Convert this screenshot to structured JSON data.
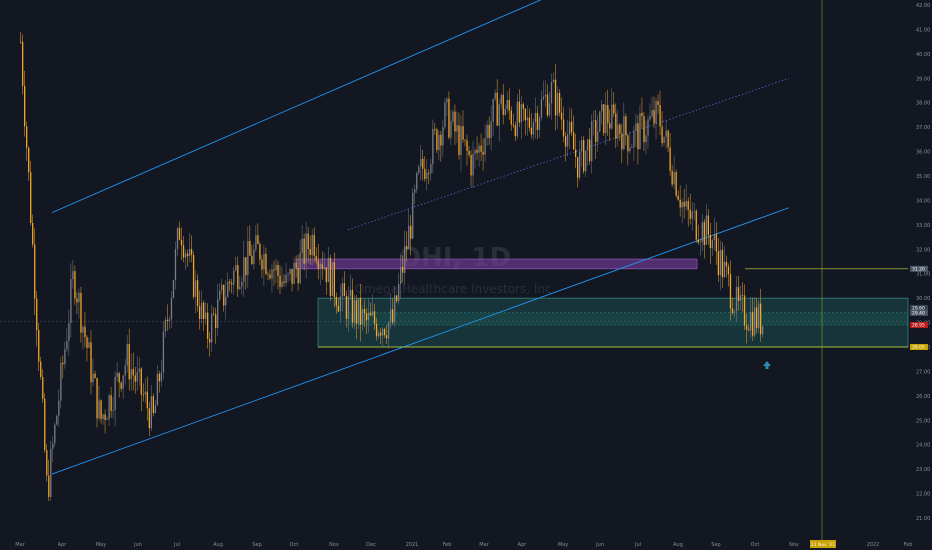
{
  "watermark": {
    "symbol": "OHI, 1D",
    "name": "Omega Healthcare Investors, Inc."
  },
  "colors": {
    "background": "#131722",
    "candle_up": "#7a7e87",
    "candle_down": "#f5a623",
    "channel_line": "#2196f3",
    "midline": "#5b6ee0",
    "purple_zone": "#7b3fa3",
    "teal_zone": "#1e6b63",
    "yellow_line": "#c8d936",
    "vertical_line": "#8a9a2a",
    "arrow": "#2f8ab0"
  },
  "chart_data": {
    "type": "candlestick",
    "title": "OHI, 1D",
    "subtitle": "Omega Healthcare Investors, Inc.",
    "y_axis": {
      "scale": "linear",
      "range": [
        20.2,
        42.0
      ],
      "ticks": [
        "42.00",
        "41.00",
        "40.00",
        "39.00",
        "38.00",
        "37.00",
        "36.00",
        "35.00",
        "34.00",
        "33.00",
        "32.00",
        "31.00",
        "30.00",
        "29.00",
        "28.00",
        "27.00",
        "26.00",
        "25.00",
        "24.00",
        "23.00",
        "22.00",
        "21.00"
      ]
    },
    "x_axis": {
      "ticks": [
        "Mar",
        "Apr",
        "May",
        "Jun",
        "Jul",
        "Aug",
        "Sep",
        "Oct",
        "Nov",
        "Dec",
        "2021",
        "Feb",
        "Mar",
        "Apr",
        "May",
        "Jun",
        "Jul",
        "Aug",
        "Sep",
        "Oct",
        "Nov",
        "2022",
        "Feb"
      ]
    },
    "approx_path": [
      {
        "date": "Mar",
        "close": 40.5
      },
      {
        "date": "Mar",
        "close": 22.0
      },
      {
        "date": "Apr",
        "close": 31.0
      },
      {
        "date": "Apr",
        "close": 25.0
      },
      {
        "date": "May",
        "close": 27.5
      },
      {
        "date": "May",
        "close": 25.0
      },
      {
        "date": "Jun",
        "close": 33.0
      },
      {
        "date": "Jun",
        "close": 28.5
      },
      {
        "date": "Jul",
        "close": 31.0
      },
      {
        "date": "Aug",
        "close": 32.0
      },
      {
        "date": "Sep",
        "close": 30.5
      },
      {
        "date": "Sep",
        "close": 32.5
      },
      {
        "date": "Oct",
        "close": 30.0
      },
      {
        "date": "Oct",
        "close": 29.0
      },
      {
        "date": "Nov",
        "close": 29.0
      },
      {
        "date": "Nov",
        "close": 35.0
      },
      {
        "date": "Dec",
        "close": 37.5
      },
      {
        "date": "2021",
        "close": 35.5
      },
      {
        "date": "Feb",
        "close": 38.0
      },
      {
        "date": "Mar",
        "close": 37.0
      },
      {
        "date": "Apr",
        "close": 38.5
      },
      {
        "date": "May",
        "close": 35.5
      },
      {
        "date": "Jun",
        "close": 37.5
      },
      {
        "date": "Jul",
        "close": 36.5
      },
      {
        "date": "Jul",
        "close": 37.5
      },
      {
        "date": "Aug",
        "close": 33.5
      },
      {
        "date": "Sep",
        "close": 32.5
      },
      {
        "date": "Sep",
        "close": 29.5
      },
      {
        "date": "Oct",
        "close": 29.0
      }
    ],
    "annotations": {
      "channel_upper": [
        {
          "date": "Mar",
          "value": 33.5
        },
        {
          "date": "Sep",
          "value": 43.0
        }
      ],
      "channel_lower": [
        {
          "date": "Mar",
          "value": 22.8
        },
        {
          "date": "Sep",
          "value": 33.7
        }
      ],
      "midline": [
        {
          "date": "Nov",
          "value": 32.8
        },
        {
          "date": "Oct",
          "value": 39.0
        }
      ],
      "purple_zone": {
        "from_date": "Oct",
        "to_date": "Aug",
        "top": 31.6,
        "bottom": 31.2
      },
      "teal_zone": {
        "from_date": "Nov",
        "top": 30.0,
        "bottom": 28.0
      },
      "support_line": 28.0,
      "resistance_line": 31.2,
      "vertical_marker_date": "Nov"
    },
    "price_tags": [
      {
        "value": 31.2,
        "label": "31.20",
        "color": "#4b5563"
      },
      {
        "value": 29.6,
        "label": "29.60",
        "color": "#374151"
      },
      {
        "value": 29.4,
        "label": "29.40",
        "color": "#4b5563"
      },
      {
        "value": 28.9,
        "label": "28.95",
        "color": "#b71c1c"
      },
      {
        "value": 28.0,
        "label": "28.00",
        "color": "#c8a200"
      }
    ],
    "grid": false,
    "legend": "none"
  },
  "cursor_labels": {
    "date": "11 Nov '21"
  }
}
